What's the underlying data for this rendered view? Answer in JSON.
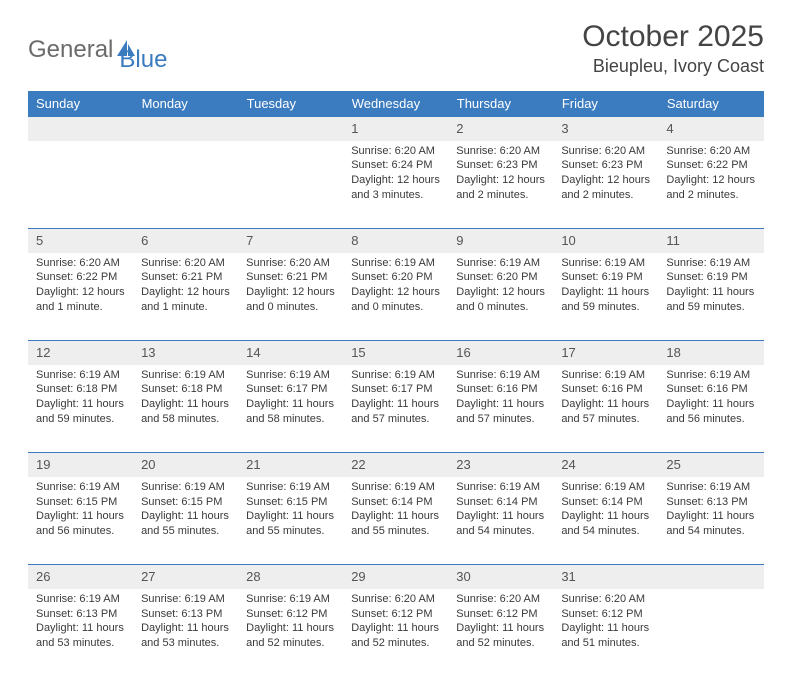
{
  "logo": {
    "part1": "General",
    "part2": "Blue"
  },
  "title": "October 2025",
  "location": "Bieupleu, Ivory Coast",
  "colors": {
    "header_bg": "#3b7bbf",
    "daynum_bg": "#eeeeee",
    "text": "#3a3a3a"
  },
  "weekdays": [
    "Sunday",
    "Monday",
    "Tuesday",
    "Wednesday",
    "Thursday",
    "Friday",
    "Saturday"
  ],
  "weeks": [
    [
      {
        "n": "",
        "empty": true
      },
      {
        "n": "",
        "empty": true
      },
      {
        "n": "",
        "empty": true
      },
      {
        "n": "1",
        "sunrise": "Sunrise: 6:20 AM",
        "sunset": "Sunset: 6:24 PM",
        "day1": "Daylight: 12 hours",
        "day2": "and 3 minutes."
      },
      {
        "n": "2",
        "sunrise": "Sunrise: 6:20 AM",
        "sunset": "Sunset: 6:23 PM",
        "day1": "Daylight: 12 hours",
        "day2": "and 2 minutes."
      },
      {
        "n": "3",
        "sunrise": "Sunrise: 6:20 AM",
        "sunset": "Sunset: 6:23 PM",
        "day1": "Daylight: 12 hours",
        "day2": "and 2 minutes."
      },
      {
        "n": "4",
        "sunrise": "Sunrise: 6:20 AM",
        "sunset": "Sunset: 6:22 PM",
        "day1": "Daylight: 12 hours",
        "day2": "and 2 minutes."
      }
    ],
    [
      {
        "n": "5",
        "sunrise": "Sunrise: 6:20 AM",
        "sunset": "Sunset: 6:22 PM",
        "day1": "Daylight: 12 hours",
        "day2": "and 1 minute."
      },
      {
        "n": "6",
        "sunrise": "Sunrise: 6:20 AM",
        "sunset": "Sunset: 6:21 PM",
        "day1": "Daylight: 12 hours",
        "day2": "and 1 minute."
      },
      {
        "n": "7",
        "sunrise": "Sunrise: 6:20 AM",
        "sunset": "Sunset: 6:21 PM",
        "day1": "Daylight: 12 hours",
        "day2": "and 0 minutes."
      },
      {
        "n": "8",
        "sunrise": "Sunrise: 6:19 AM",
        "sunset": "Sunset: 6:20 PM",
        "day1": "Daylight: 12 hours",
        "day2": "and 0 minutes."
      },
      {
        "n": "9",
        "sunrise": "Sunrise: 6:19 AM",
        "sunset": "Sunset: 6:20 PM",
        "day1": "Daylight: 12 hours",
        "day2": "and 0 minutes."
      },
      {
        "n": "10",
        "sunrise": "Sunrise: 6:19 AM",
        "sunset": "Sunset: 6:19 PM",
        "day1": "Daylight: 11 hours",
        "day2": "and 59 minutes."
      },
      {
        "n": "11",
        "sunrise": "Sunrise: 6:19 AM",
        "sunset": "Sunset: 6:19 PM",
        "day1": "Daylight: 11 hours",
        "day2": "and 59 minutes."
      }
    ],
    [
      {
        "n": "12",
        "sunrise": "Sunrise: 6:19 AM",
        "sunset": "Sunset: 6:18 PM",
        "day1": "Daylight: 11 hours",
        "day2": "and 59 minutes."
      },
      {
        "n": "13",
        "sunrise": "Sunrise: 6:19 AM",
        "sunset": "Sunset: 6:18 PM",
        "day1": "Daylight: 11 hours",
        "day2": "and 58 minutes."
      },
      {
        "n": "14",
        "sunrise": "Sunrise: 6:19 AM",
        "sunset": "Sunset: 6:17 PM",
        "day1": "Daylight: 11 hours",
        "day2": "and 58 minutes."
      },
      {
        "n": "15",
        "sunrise": "Sunrise: 6:19 AM",
        "sunset": "Sunset: 6:17 PM",
        "day1": "Daylight: 11 hours",
        "day2": "and 57 minutes."
      },
      {
        "n": "16",
        "sunrise": "Sunrise: 6:19 AM",
        "sunset": "Sunset: 6:16 PM",
        "day1": "Daylight: 11 hours",
        "day2": "and 57 minutes."
      },
      {
        "n": "17",
        "sunrise": "Sunrise: 6:19 AM",
        "sunset": "Sunset: 6:16 PM",
        "day1": "Daylight: 11 hours",
        "day2": "and 57 minutes."
      },
      {
        "n": "18",
        "sunrise": "Sunrise: 6:19 AM",
        "sunset": "Sunset: 6:16 PM",
        "day1": "Daylight: 11 hours",
        "day2": "and 56 minutes."
      }
    ],
    [
      {
        "n": "19",
        "sunrise": "Sunrise: 6:19 AM",
        "sunset": "Sunset: 6:15 PM",
        "day1": "Daylight: 11 hours",
        "day2": "and 56 minutes."
      },
      {
        "n": "20",
        "sunrise": "Sunrise: 6:19 AM",
        "sunset": "Sunset: 6:15 PM",
        "day1": "Daylight: 11 hours",
        "day2": "and 55 minutes."
      },
      {
        "n": "21",
        "sunrise": "Sunrise: 6:19 AM",
        "sunset": "Sunset: 6:15 PM",
        "day1": "Daylight: 11 hours",
        "day2": "and 55 minutes."
      },
      {
        "n": "22",
        "sunrise": "Sunrise: 6:19 AM",
        "sunset": "Sunset: 6:14 PM",
        "day1": "Daylight: 11 hours",
        "day2": "and 55 minutes."
      },
      {
        "n": "23",
        "sunrise": "Sunrise: 6:19 AM",
        "sunset": "Sunset: 6:14 PM",
        "day1": "Daylight: 11 hours",
        "day2": "and 54 minutes."
      },
      {
        "n": "24",
        "sunrise": "Sunrise: 6:19 AM",
        "sunset": "Sunset: 6:14 PM",
        "day1": "Daylight: 11 hours",
        "day2": "and 54 minutes."
      },
      {
        "n": "25",
        "sunrise": "Sunrise: 6:19 AM",
        "sunset": "Sunset: 6:13 PM",
        "day1": "Daylight: 11 hours",
        "day2": "and 54 minutes."
      }
    ],
    [
      {
        "n": "26",
        "sunrise": "Sunrise: 6:19 AM",
        "sunset": "Sunset: 6:13 PM",
        "day1": "Daylight: 11 hours",
        "day2": "and 53 minutes."
      },
      {
        "n": "27",
        "sunrise": "Sunrise: 6:19 AM",
        "sunset": "Sunset: 6:13 PM",
        "day1": "Daylight: 11 hours",
        "day2": "and 53 minutes."
      },
      {
        "n": "28",
        "sunrise": "Sunrise: 6:19 AM",
        "sunset": "Sunset: 6:12 PM",
        "day1": "Daylight: 11 hours",
        "day2": "and 52 minutes."
      },
      {
        "n": "29",
        "sunrise": "Sunrise: 6:20 AM",
        "sunset": "Sunset: 6:12 PM",
        "day1": "Daylight: 11 hours",
        "day2": "and 52 minutes."
      },
      {
        "n": "30",
        "sunrise": "Sunrise: 6:20 AM",
        "sunset": "Sunset: 6:12 PM",
        "day1": "Daylight: 11 hours",
        "day2": "and 52 minutes."
      },
      {
        "n": "31",
        "sunrise": "Sunrise: 6:20 AM",
        "sunset": "Sunset: 6:12 PM",
        "day1": "Daylight: 11 hours",
        "day2": "and 51 minutes."
      },
      {
        "n": "",
        "empty": true
      }
    ]
  ]
}
